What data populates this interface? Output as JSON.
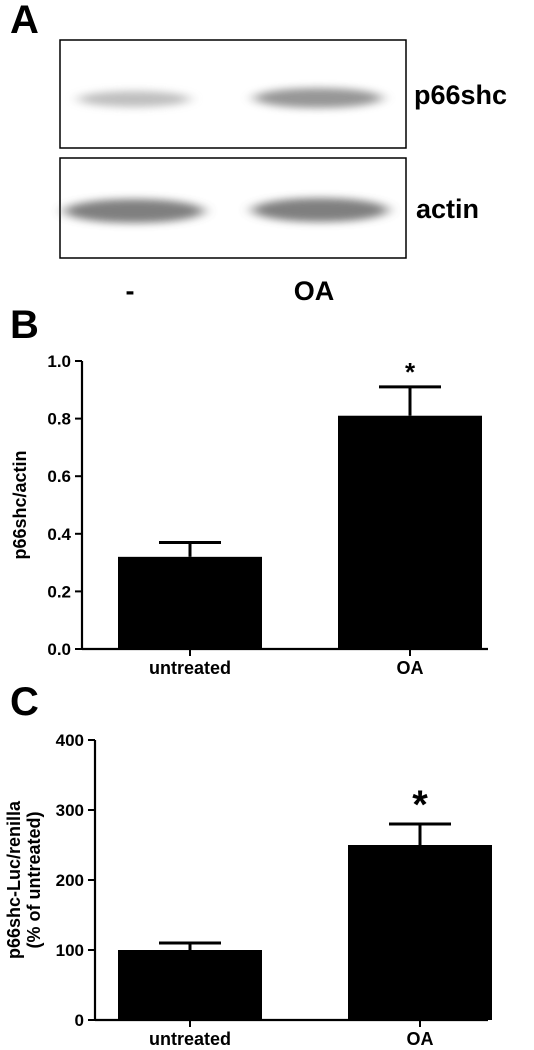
{
  "panels": {
    "A": {
      "letter": "A",
      "blot_labels": [
        "p66shc",
        "actin"
      ],
      "lane_labels": [
        "-",
        "OA"
      ]
    },
    "B": {
      "letter": "B"
    },
    "C": {
      "letter": "C"
    }
  },
  "chart_data": [
    {
      "panel": "B",
      "type": "bar",
      "categories": [
        "untreated",
        "OA"
      ],
      "values": [
        0.32,
        0.81
      ],
      "errors": [
        0.05,
        0.1
      ],
      "ylabel": "p66shc/actin",
      "xlabel": "",
      "ylim": [
        0,
        1.0
      ],
      "yticks": [
        "0.0",
        "0.2",
        "0.4",
        "0.6",
        "0.8",
        "1.0"
      ],
      "significance": [
        "",
        "*"
      ],
      "bar_color": "#000000"
    },
    {
      "panel": "C",
      "type": "bar",
      "categories": [
        "untreated",
        "OA"
      ],
      "values": [
        100,
        250
      ],
      "errors": [
        10,
        30
      ],
      "ylabel": [
        "p66shc-Luc/renilla",
        "(% of untreated)"
      ],
      "xlabel": "",
      "ylim": [
        0,
        400
      ],
      "yticks": [
        "0",
        "100",
        "200",
        "300",
        "400"
      ],
      "significance": [
        "",
        "*"
      ],
      "bar_color": "#000000"
    }
  ]
}
